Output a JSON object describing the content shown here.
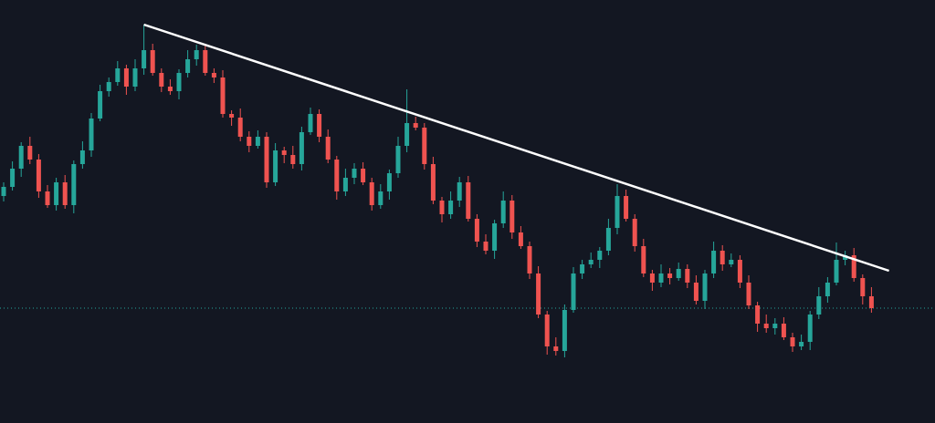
{
  "chart_data": {
    "type": "candlestick",
    "ylim": [
      0,
      464
    ],
    "up_color": "#26a69a",
    "down_color": "#ef5350",
    "background": "#131722",
    "open": [
      249,
      259,
      279,
      304,
      289,
      254,
      239,
      264,
      239,
      284,
      299,
      334,
      364,
      374,
      389,
      369,
      389,
      409,
      384,
      369,
      364,
      384,
      399,
      409,
      384,
      379,
      339,
      335,
      314,
      304,
      314,
      264,
      299,
      294,
      284,
      319,
      339,
      314,
      289,
      254,
      269,
      279,
      264,
      239,
      254,
      274,
      304,
      329,
      324,
      284,
      244,
      229,
      244,
      264,
      224,
      199,
      189,
      219,
      244,
      209,
      194,
      164,
      119,
      84,
      79,
      124,
      164,
      174,
      179,
      189,
      214,
      249,
      224,
      194,
      164,
      154,
      164,
      159,
      169,
      154,
      134,
      164,
      189,
      174,
      179,
      154,
      129,
      109,
      104,
      109,
      94,
      84,
      89,
      119,
      139,
      154,
      179,
      184,
      159,
      139
    ],
    "high": [
      264,
      287,
      308,
      314,
      295,
      261,
      269,
      272,
      288,
      309,
      340,
      371,
      379,
      397,
      393,
      399,
      437,
      416,
      389,
      377,
      388,
      409,
      415,
      416,
      389,
      387,
      343,
      345,
      320,
      321,
      319,
      307,
      303,
      304,
      325,
      346,
      344,
      322,
      293,
      279,
      285,
      286,
      269,
      262,
      278,
      314,
      366,
      336,
      329,
      292,
      248,
      254,
      270,
      271,
      229,
      207,
      223,
      254,
      250,
      216,
      199,
      172,
      123,
      94,
      130,
      171,
      179,
      187,
      193,
      224,
      262,
      256,
      229,
      202,
      168,
      174,
      170,
      176,
      174,
      162,
      168,
      199,
      195,
      186,
      184,
      162,
      133,
      119,
      115,
      116,
      99,
      97,
      123,
      149,
      160,
      198,
      189,
      192,
      163,
      149
    ],
    "low": [
      243,
      255,
      270,
      284,
      247,
      236,
      233,
      235,
      230,
      279,
      292,
      331,
      358,
      370,
      360,
      364,
      382,
      381,
      363,
      360,
      355,
      379,
      392,
      381,
      373,
      335,
      326,
      309,
      297,
      301,
      258,
      260,
      285,
      279,
      277,
      316,
      308,
      285,
      245,
      249,
      262,
      261,
      233,
      235,
      245,
      269,
      297,
      321,
      278,
      240,
      220,
      224,
      237,
      221,
      193,
      185,
      180,
      214,
      202,
      191,
      158,
      115,
      75,
      74,
      72,
      121,
      158,
      170,
      170,
      184,
      207,
      221,
      188,
      160,
      145,
      149,
      152,
      156,
      148,
      130,
      125,
      159,
      167,
      171,
      148,
      125,
      100,
      99,
      97,
      91,
      78,
      80,
      80,
      114,
      132,
      151,
      173,
      155,
      130,
      121
    ],
    "close": [
      259,
      279,
      304,
      289,
      254,
      239,
      264,
      239,
      284,
      299,
      334,
      364,
      374,
      389,
      369,
      389,
      409,
      384,
      369,
      364,
      384,
      399,
      409,
      384,
      379,
      339,
      335,
      314,
      304,
      314,
      264,
      299,
      294,
      284,
      319,
      339,
      314,
      289,
      254,
      269,
      279,
      264,
      239,
      254,
      274,
      304,
      329,
      324,
      284,
      244,
      229,
      244,
      264,
      224,
      199,
      189,
      219,
      244,
      209,
      194,
      164,
      119,
      84,
      79,
      124,
      164,
      174,
      179,
      189,
      214,
      249,
      224,
      194,
      164,
      154,
      164,
      159,
      169,
      154,
      134,
      164,
      189,
      174,
      179,
      154,
      129,
      109,
      104,
      109,
      94,
      84,
      89,
      119,
      139,
      154,
      179,
      184,
      159,
      139,
      126
    ],
    "trendline": {
      "x": [
        16,
        101
      ],
      "y": [
        437,
        167
      ],
      "color": "#ffffff"
    },
    "last_price": 126
  }
}
